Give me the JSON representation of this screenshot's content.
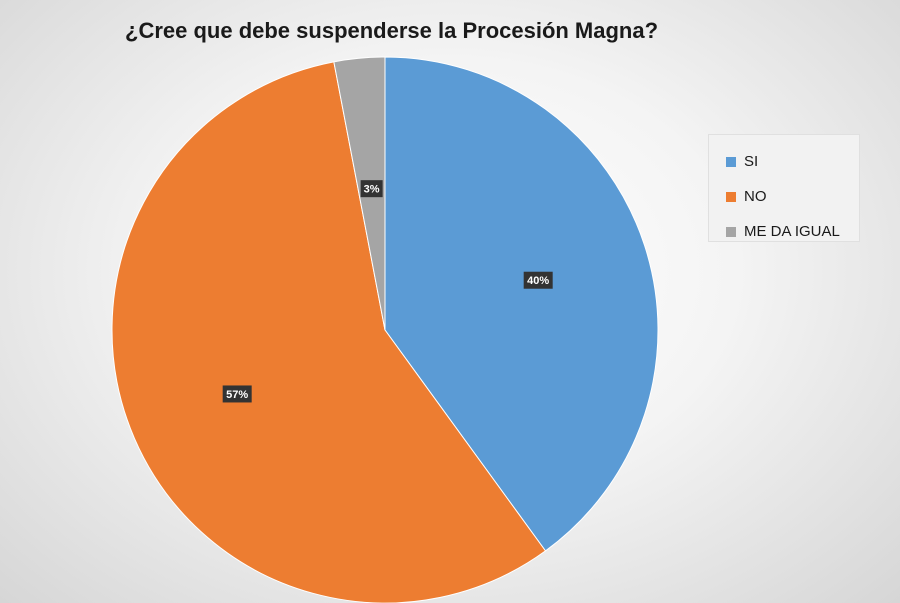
{
  "chart_data": {
    "type": "pie",
    "title": "¿Cree que debe suspenderse la Procesión Magna?",
    "categories": [
      "SI",
      "NO",
      "ME DA IGUAL"
    ],
    "values": [
      40,
      57,
      3
    ],
    "data_labels": [
      "40%",
      "57%",
      "3%"
    ],
    "colors": [
      "#5b9bd5",
      "#ed7d31",
      "#a5a5a5"
    ],
    "legend_position": "right",
    "start_angle": "12 o'clock, clockwise"
  }
}
